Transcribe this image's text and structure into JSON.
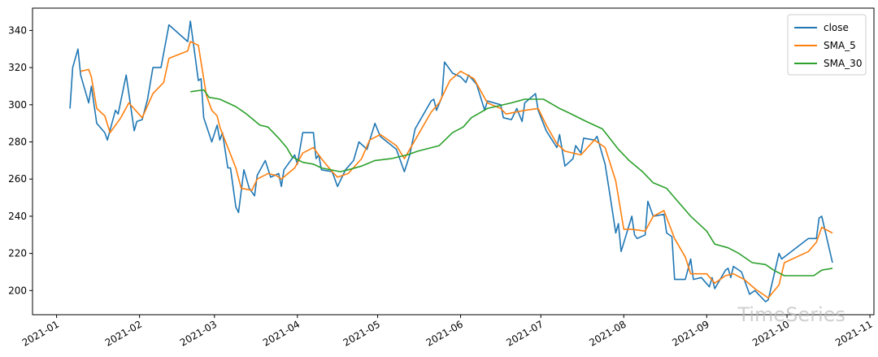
{
  "chart_data": {
    "type": "line",
    "watermark": "TimeSeries",
    "xlim": [
      -9,
      305.5
    ],
    "xticks": [
      {
        "value": 0,
        "label": "2021-01"
      },
      {
        "value": 31,
        "label": "2021-02"
      },
      {
        "value": 59,
        "label": "2021-03"
      },
      {
        "value": 90,
        "label": "2021-04"
      },
      {
        "value": 120,
        "label": "2021-05"
      },
      {
        "value": 151,
        "label": "2021-06"
      },
      {
        "value": 181,
        "label": "2021-07"
      },
      {
        "value": 212,
        "label": "2021-08"
      },
      {
        "value": 243,
        "label": "2021-09"
      },
      {
        "value": 273,
        "label": "2021-10"
      },
      {
        "value": 304,
        "label": "2021-11"
      }
    ],
    "ylim": [
      187,
      352
    ],
    "yticks": [
      200,
      220,
      240,
      260,
      280,
      300,
      320,
      340
    ],
    "legend": "upper right",
    "series": [
      {
        "name": "close",
        "color": "#1f77b4",
        "x": [
          5,
          6,
          8,
          9,
          12,
          13,
          15,
          18,
          19,
          22,
          23,
          26,
          27,
          29,
          30,
          32,
          34,
          36,
          39,
          42,
          49,
          50,
          53,
          54,
          55,
          58,
          60,
          61,
          62,
          64,
          65,
          67,
          68,
          70,
          72,
          74,
          75,
          78,
          80,
          83,
          84,
          85,
          89,
          90,
          92,
          96,
          97,
          98,
          99,
          103,
          105,
          108,
          111,
          113,
          116,
          119,
          121,
          127,
          130,
          132,
          134,
          140,
          141,
          142,
          144,
          145,
          148,
          151,
          153,
          154,
          157,
          160,
          161,
          166,
          167,
          170,
          172,
          174,
          175,
          179,
          180,
          183,
          187,
          188,
          190,
          193,
          194,
          196,
          197,
          201,
          202,
          205,
          207,
          209,
          210,
          211,
          215,
          216,
          217,
          220,
          221,
          223,
          227,
          228,
          230,
          231,
          235,
          237,
          238,
          241,
          244,
          245,
          246,
          250,
          251,
          252,
          253,
          256,
          259,
          261,
          265,
          266,
          270,
          271,
          281,
          284,
          285,
          286,
          290
        ],
        "values": [
          298,
          320,
          330,
          316,
          301,
          310,
          290,
          285,
          281,
          297,
          295,
          316,
          306,
          286,
          291,
          292,
          303,
          320,
          320,
          343,
          334,
          345,
          313,
          314,
          293,
          280,
          289,
          281,
          285,
          266,
          266,
          245,
          242,
          265,
          255,
          251,
          262,
          270,
          261,
          263,
          256,
          265,
          273,
          268,
          285,
          285,
          271,
          273,
          265,
          264,
          256,
          265,
          270,
          280,
          276,
          290,
          283,
          276,
          264,
          273,
          287,
          302,
          303,
          297,
          304,
          323,
          317,
          315,
          312,
          316,
          311,
          297,
          302,
          300,
          293,
          292,
          298,
          291,
          301,
          306,
          297,
          286,
          277,
          284,
          267,
          271,
          278,
          274,
          282,
          281,
          283,
          268,
          250,
          231,
          236,
          221,
          240,
          230,
          228,
          230,
          248,
          240,
          241,
          231,
          229,
          206,
          206,
          217,
          206,
          207,
          202,
          207,
          201,
          211,
          212,
          207,
          213,
          210,
          198,
          200,
          194,
          195,
          220,
          217,
          228,
          228,
          239,
          240,
          215
        ]
      },
      {
        "name": "SMA_5",
        "color": "#ff7f0e",
        "x": [
          9,
          12,
          13,
          15,
          18,
          20,
          24,
          27,
          32,
          36,
          40,
          42,
          49,
          50,
          53,
          56,
          58,
          60,
          61,
          67,
          69,
          73,
          75,
          79,
          82,
          84,
          89,
          92,
          96,
          99,
          103,
          105,
          109,
          114,
          117,
          121,
          127,
          130,
          134,
          140,
          143,
          147,
          151,
          156,
          161,
          166,
          168,
          175,
          180,
          183,
          187,
          190,
          196,
          201,
          205,
          209,
          212,
          215,
          220,
          223,
          227,
          231,
          235,
          237,
          243,
          246,
          250,
          253,
          257,
          261,
          266,
          270,
          272,
          281,
          284,
          286,
          290
        ],
        "values": [
          318,
          319,
          315,
          298,
          294,
          285,
          293,
          301,
          293,
          306,
          312,
          325,
          329,
          334,
          332,
          305,
          297,
          294,
          288,
          266,
          255,
          254,
          260,
          263,
          262,
          260,
          266,
          274,
          277,
          271,
          264,
          261,
          263,
          271,
          281,
          284,
          278,
          271,
          281,
          296,
          301,
          313,
          318,
          314,
          301,
          298,
          295,
          297,
          298,
          289,
          279,
          275,
          273,
          281,
          277,
          259,
          233,
          233,
          232,
          240,
          243,
          228,
          218,
          209,
          209,
          204,
          208,
          209,
          206,
          201,
          196,
          203,
          215,
          221,
          226,
          234,
          231
        ]
      },
      {
        "name": "SMA_30",
        "color": "#2ca02c",
        "x": [
          50,
          55,
          57,
          61,
          64,
          67,
          71,
          76,
          79,
          83,
          86,
          88,
          92,
          96,
          99,
          106,
          109,
          114,
          119,
          125,
          131,
          135,
          143,
          148,
          152,
          155,
          161,
          170,
          175,
          182,
          188,
          191,
          198,
          204,
          210,
          214,
          219,
          223,
          228,
          231,
          237,
          243,
          246,
          251,
          255,
          260,
          265,
          268,
          272,
          283,
          286,
          290
        ],
        "values": [
          307,
          308,
          304,
          303,
          301,
          299,
          295,
          289,
          288,
          282,
          277,
          272,
          269,
          268,
          266,
          264,
          265,
          267,
          270,
          271,
          273,
          275,
          278,
          285,
          288,
          293,
          298,
          301,
          303,
          303,
          298,
          296,
          291,
          287,
          276,
          270,
          264,
          258,
          255,
          250,
          240,
          232,
          225,
          223,
          220,
          215,
          214,
          211,
          208,
          208,
          211,
          212
        ]
      }
    ]
  }
}
